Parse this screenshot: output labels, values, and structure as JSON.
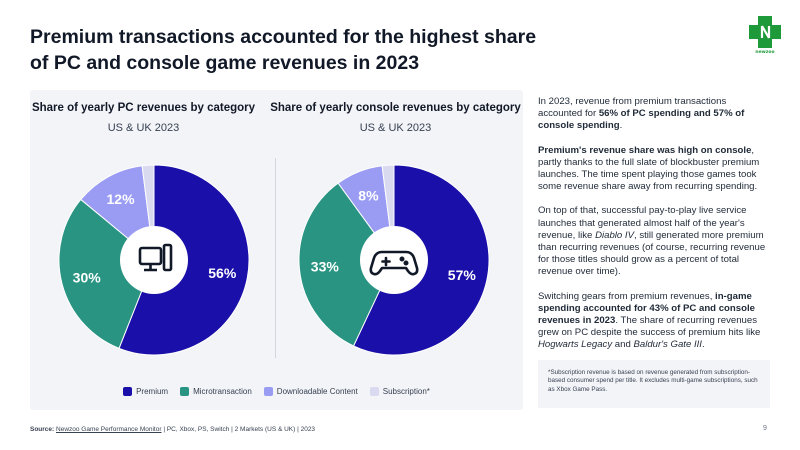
{
  "title": "Premium transactions accounted for the highest share of PC and console game revenues in 2023",
  "colors": {
    "premium": "#1a0fa8",
    "microtransaction": "#2a9483",
    "dlc": "#9a9cf4",
    "subscription": "#d9d9f0",
    "panel": "#f3f4f8",
    "brand_green": "#1f9a3a"
  },
  "icons": {
    "pc": "pc-tower-icon",
    "console": "gamepad-icon",
    "logo": "newzoo-logo"
  },
  "chart_data": [
    {
      "type": "pie",
      "title": "Share of yearly PC revenues by category",
      "subtitle": "US & UK 2023",
      "categories": [
        "Premium",
        "Microtransaction",
        "Downloadable Content",
        "Subscription*"
      ],
      "values": [
        56,
        30,
        12,
        2
      ],
      "labels": [
        "56%",
        "30%",
        "12%",
        ""
      ],
      "donut": true
    },
    {
      "type": "pie",
      "title": "Share of yearly console revenues by category",
      "subtitle": "US & UK 2023",
      "categories": [
        "Premium",
        "Microtransaction",
        "Downloadable Content",
        "Subscription*"
      ],
      "values": [
        57,
        33,
        8,
        2
      ],
      "labels": [
        "57%",
        "33%",
        "8%",
        ""
      ],
      "donut": true
    }
  ],
  "legend": [
    "Premium",
    "Microtransaction",
    "Downloadable Content",
    "Subscription*"
  ],
  "commentary": {
    "p1_pre": "In 2023, revenue from premium transactions accounted for ",
    "p1_bold": "56% of PC spending and 57% of console spending",
    "p1_post": ".",
    "p2_bold": "Premium's revenue share was high on console",
    "p2_post": ", partly thanks to the full slate of blockbuster premium launches. The time spent playing those games took some revenue share away from recurring spending.",
    "p3_pre": "On top of that, successful pay-to-play live service launches that generated almost half of the year's revenue, like ",
    "p3_italic": "Diablo IV",
    "p3_post": ", still generated more premium than recurring revenues (of course, recurring revenue for those titles should grow as a percent of total revenue over time).",
    "p4_pre": "Switching gears from premium revenues, ",
    "p4_bold": "in-game spending accounted for 43% of PC and console revenues in 2023",
    "p4_mid": ". The share of recurring revenues grew on PC despite the success of premium hits like ",
    "p4_italic1": "Hogwarts Legacy",
    "p4_and": " and ",
    "p4_italic2": "Baldur's Gate III",
    "p4_end": "."
  },
  "note": "*Subscription revenue is based on revenue generated from subscription-based consumer spend per title. It excludes multi-game subscriptions, such as Xbox Game Pass.",
  "source": {
    "label": "Source:",
    "link": "Newzoo Game Performance Monitor",
    "rest": " | PC, Xbox, PS, Switch | 2 Markets (US & UK) | 2023"
  },
  "page_number": "9"
}
